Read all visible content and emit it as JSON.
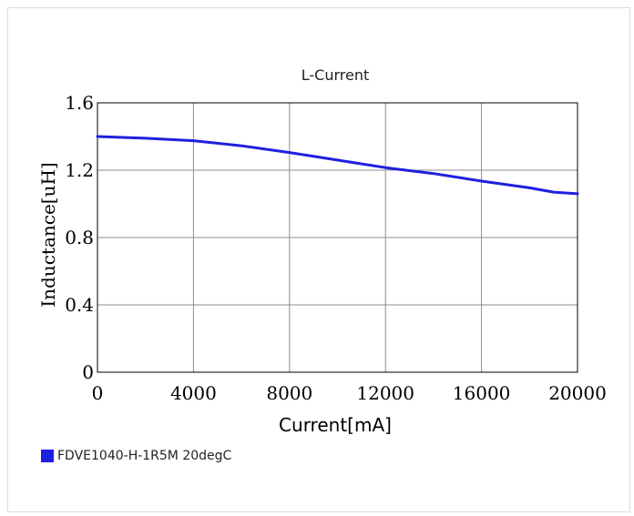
{
  "chart_data": {
    "type": "line",
    "title": "L-Current",
    "xlabel": "Current[mA]",
    "ylabel": "Inductance[uH]",
    "xlim": [
      0,
      20000
    ],
    "ylim": [
      0,
      1.6
    ],
    "x_ticks": [
      "0",
      "4000",
      "8000",
      "12000",
      "16000",
      "20000"
    ],
    "y_ticks": [
      "0",
      "0.4",
      "0.8",
      "1.2",
      "1.6"
    ],
    "grid": true,
    "legend_position": "bottom-left",
    "series": [
      {
        "name": "FDVE1040-H-1R5M 20degC",
        "color": "#1f1fe0",
        "x": [
          0,
          2000,
          4000,
          6000,
          8000,
          10000,
          12000,
          14000,
          16000,
          18000,
          19000,
          20000
        ],
        "y": [
          1.4,
          1.39,
          1.375,
          1.345,
          1.305,
          1.26,
          1.215,
          1.18,
          1.135,
          1.095,
          1.07,
          1.06
        ]
      }
    ]
  }
}
